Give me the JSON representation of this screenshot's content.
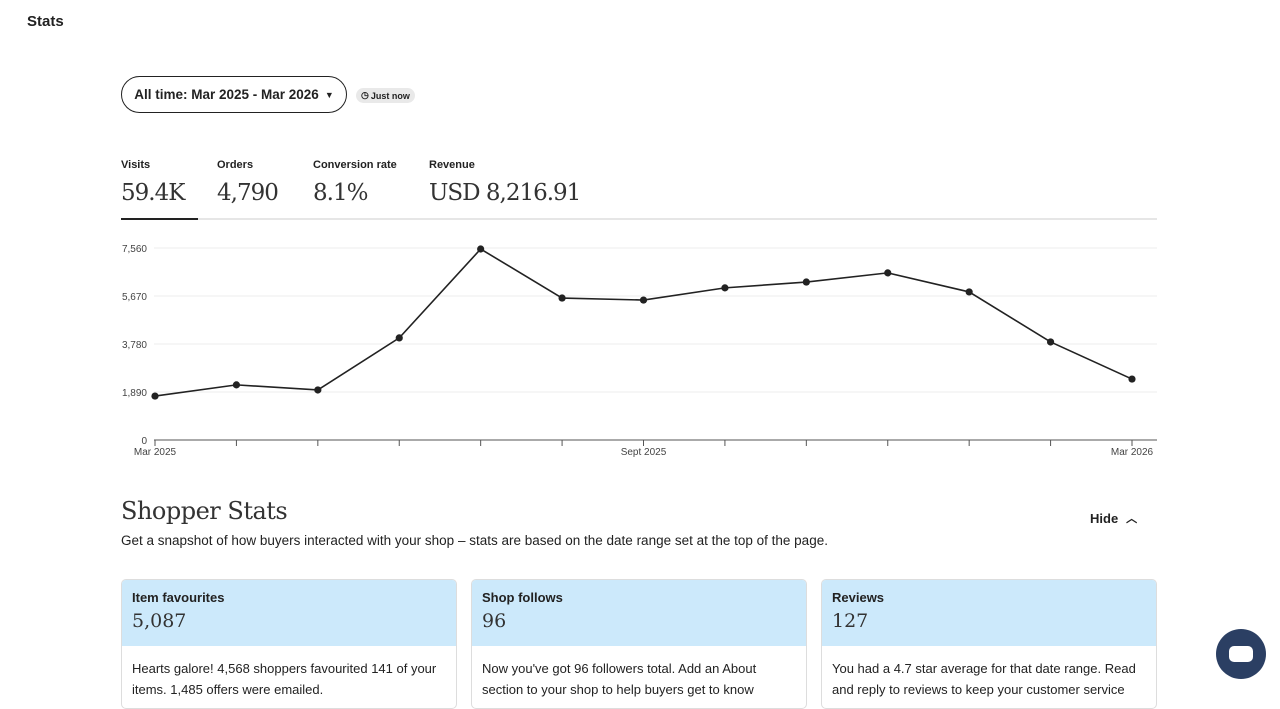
{
  "page_title": "Stats",
  "date_range": "All time: Mar 2025 - Mar 2026",
  "updated": "Just now",
  "metrics": [
    {
      "label": "Visits",
      "value": "59.4K"
    },
    {
      "label": "Orders",
      "value": "4,790"
    },
    {
      "label": "Conversion rate",
      "value": "8.1%"
    },
    {
      "label": "Revenue",
      "value": "USD 8,216.91"
    }
  ],
  "chart_data": {
    "type": "line",
    "series": [
      {
        "name": "Visits",
        "values": [
          1730,
          2170,
          1970,
          4020,
          7520,
          5590,
          5510,
          5990,
          6220,
          6580,
          5830,
          3860,
          2400
        ]
      }
    ],
    "x": [
      "Mar 2025",
      "Apr 2025",
      "May 2025",
      "Jun 2025",
      "Jul 2025",
      "Aug 2025",
      "Sept 2025",
      "Oct 2025",
      "Nov 2025",
      "Dec 2025",
      "Jan 2026",
      "Feb 2026",
      "Mar 2026"
    ],
    "x_tick_labels": {
      "0": "Mar 2025",
      "6": "Sept 2025",
      "12": "Mar 2026"
    },
    "y_ticks": [
      0,
      1890,
      3780,
      5670,
      7560
    ],
    "y_tick_labels": [
      "0",
      "1,890",
      "3,780",
      "5,670",
      "7,560"
    ],
    "ylim": [
      0,
      7560
    ],
    "grid": true
  },
  "shopper": {
    "title": "Shopper Stats",
    "description": "Get a snapshot of how buyers interacted with your shop – stats are based on the date range set at the top of the page.",
    "hide_label": "Hide",
    "cards": [
      {
        "title": "Item favourites",
        "value": "5,087",
        "body": "Hearts galore! 4,568 shoppers favourited 141 of your items. 1,485 offers were emailed."
      },
      {
        "title": "Shop follows",
        "value": "96",
        "body": "Now you've got 96 followers total. Add an About section to your shop to help buyers get to know"
      },
      {
        "title": "Reviews",
        "value": "127",
        "body": "You had a 4.7 star average for that date range. Read and reply to reviews to keep your customer service"
      }
    ]
  }
}
